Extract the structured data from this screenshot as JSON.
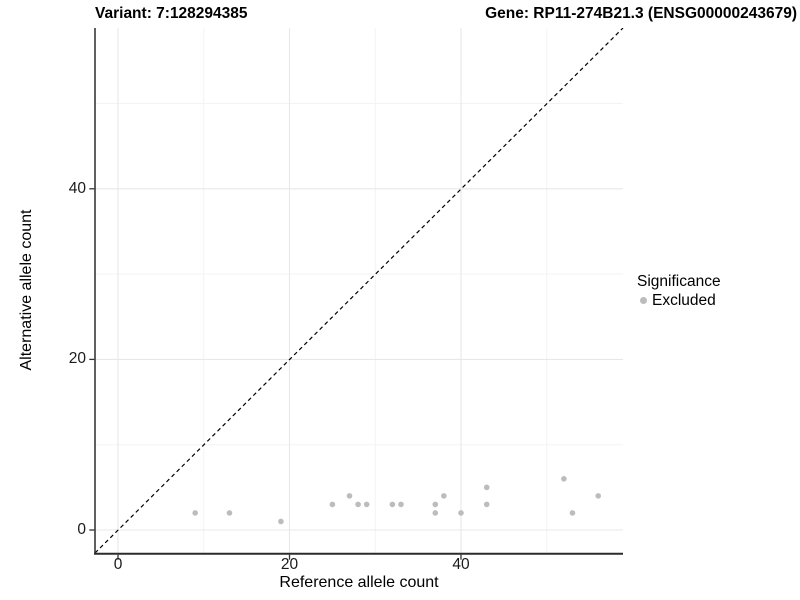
{
  "header": {
    "title_left": "Variant: 7:128294385",
    "title_right": "Gene: RP11-274B21.3 (ENSG00000243679)"
  },
  "chart_data": {
    "type": "scatter",
    "xlabel": "Reference allele count",
    "ylabel": "Alternative allele count",
    "xlim": [
      -2.7,
      58.9
    ],
    "ylim": [
      -2.7,
      58.9
    ],
    "x_major_ticks": [
      0,
      20,
      40
    ],
    "y_major_ticks": [
      0,
      20,
      40
    ],
    "x_minor_gridlines": [
      10,
      30,
      50
    ],
    "y_minor_gridlines": [
      10,
      30,
      50
    ],
    "grid": "on",
    "reference_line": {
      "type": "identity",
      "style": "dashed",
      "color": "#000000"
    },
    "legend": {
      "title": "Significance",
      "position": "right",
      "items": [
        {
          "label": "Excluded",
          "color": "#bcbcbc"
        }
      ]
    },
    "series": [
      {
        "name": "Excluded",
        "color": "#bcbcbc",
        "points": [
          [
            9,
            2
          ],
          [
            13,
            2
          ],
          [
            19,
            1
          ],
          [
            25,
            3
          ],
          [
            27,
            4
          ],
          [
            28,
            3
          ],
          [
            29,
            3
          ],
          [
            32,
            3
          ],
          [
            33,
            3
          ],
          [
            37,
            2
          ],
          [
            37,
            3
          ],
          [
            38,
            4
          ],
          [
            40,
            2
          ],
          [
            43,
            3
          ],
          [
            43,
            5
          ],
          [
            52,
            6
          ],
          [
            53,
            2
          ],
          [
            56,
            4
          ]
        ]
      }
    ]
  },
  "colors": {
    "point": "#bcbcbc",
    "grid_major": "#e8e8e8",
    "grid_minor": "#f3f3f3",
    "axis_line": "#2b2b2b",
    "tick": "#333333",
    "text": "#000000"
  }
}
